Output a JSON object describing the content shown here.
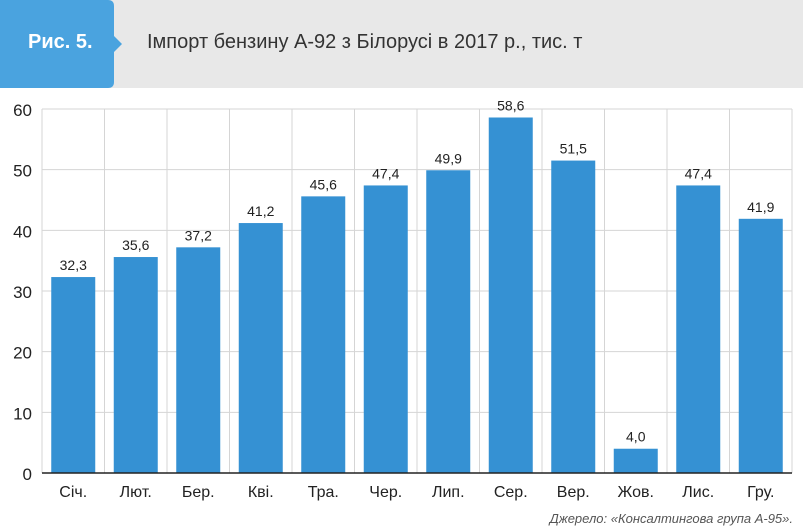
{
  "figure_label": "Рис. 5.",
  "source": "Джерело: «Консалтингова група А-95».",
  "colors": {
    "bar": "#3591d3",
    "badge": "#4aa3df",
    "header_bg": "#e8e8e8"
  },
  "chart_data": {
    "type": "bar",
    "title": "Імпорт бензину А-92 з Білорусі в 2017 р., тис. т",
    "categories": [
      "Січ.",
      "Лют.",
      "Бер.",
      "Кві.",
      "Тра.",
      "Чер.",
      "Лип.",
      "Сер.",
      "Вер.",
      "Жов.",
      "Лис.",
      "Гру."
    ],
    "values": [
      32.3,
      35.6,
      37.2,
      41.2,
      45.6,
      47.4,
      49.9,
      58.6,
      51.5,
      4.0,
      47.4,
      41.9
    ],
    "value_labels": [
      "32,3",
      "35,6",
      "37,2",
      "41,2",
      "45,6",
      "47,4",
      "49,9",
      "58,6",
      "51,5",
      "4,0",
      "47,4",
      "41,9"
    ],
    "yticks": [
      "0",
      "10",
      "20",
      "30",
      "40",
      "50",
      "60"
    ],
    "ylim": [
      0,
      60
    ],
    "xlabel": "",
    "ylabel": "",
    "grid": true
  }
}
